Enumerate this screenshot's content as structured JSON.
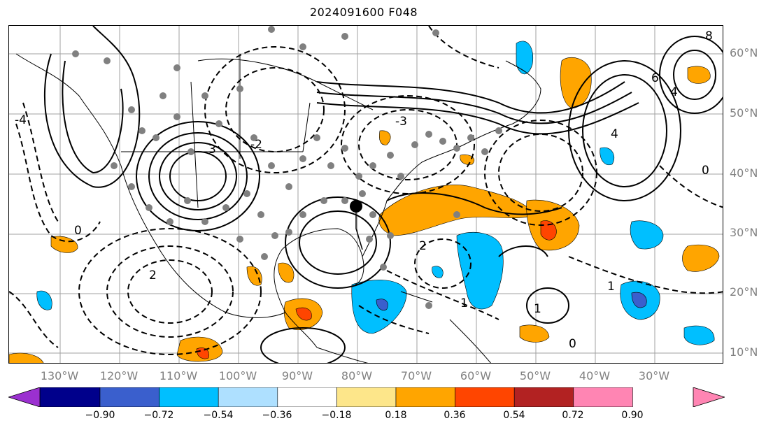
{
  "title": "2024091600 F048",
  "lat_labels": [
    "60°N",
    "50°N",
    "40°N",
    "30°N",
    "20°N",
    "10°N"
  ],
  "lon_labels": [
    "130°W",
    "120°W",
    "110°W",
    "100°W",
    "90°W",
    "80°W",
    "70°W",
    "60°W",
    "50°W",
    "40°W",
    "30°W"
  ],
  "contour_labels": [
    "0",
    "2",
    "-2",
    "3",
    "-3",
    "4",
    "-4",
    "1",
    "0",
    "2",
    "1",
    "6",
    "4",
    "8",
    "0",
    "1"
  ],
  "colorbar": {
    "ticks": [
      "−0.90",
      "−0.72",
      "−0.54",
      "−0.36",
      "−0.18",
      "0.18",
      "0.36",
      "0.54",
      "0.72",
      "0.90"
    ],
    "colors": [
      "#9b30d0",
      "#00008b",
      "#3a5fcd",
      "#00bfff",
      "#aee0ff",
      "#ffffff",
      "#fde68a",
      "#ffa500",
      "#ff4500",
      "#b22222",
      "#ff85b3"
    ],
    "extend_low_color": "#9b30d0",
    "extend_high_color": "#ff85b3"
  },
  "colors": {
    "positive_fill": "#ffa500",
    "strong_positive_fill": "#ff4500",
    "negative_fill": "#00bfff",
    "strong_negative_fill": "#3a5fcd",
    "gray_marker": "#808080",
    "grid": "#a0a0a0"
  },
  "storm_marker": "black-dot"
}
